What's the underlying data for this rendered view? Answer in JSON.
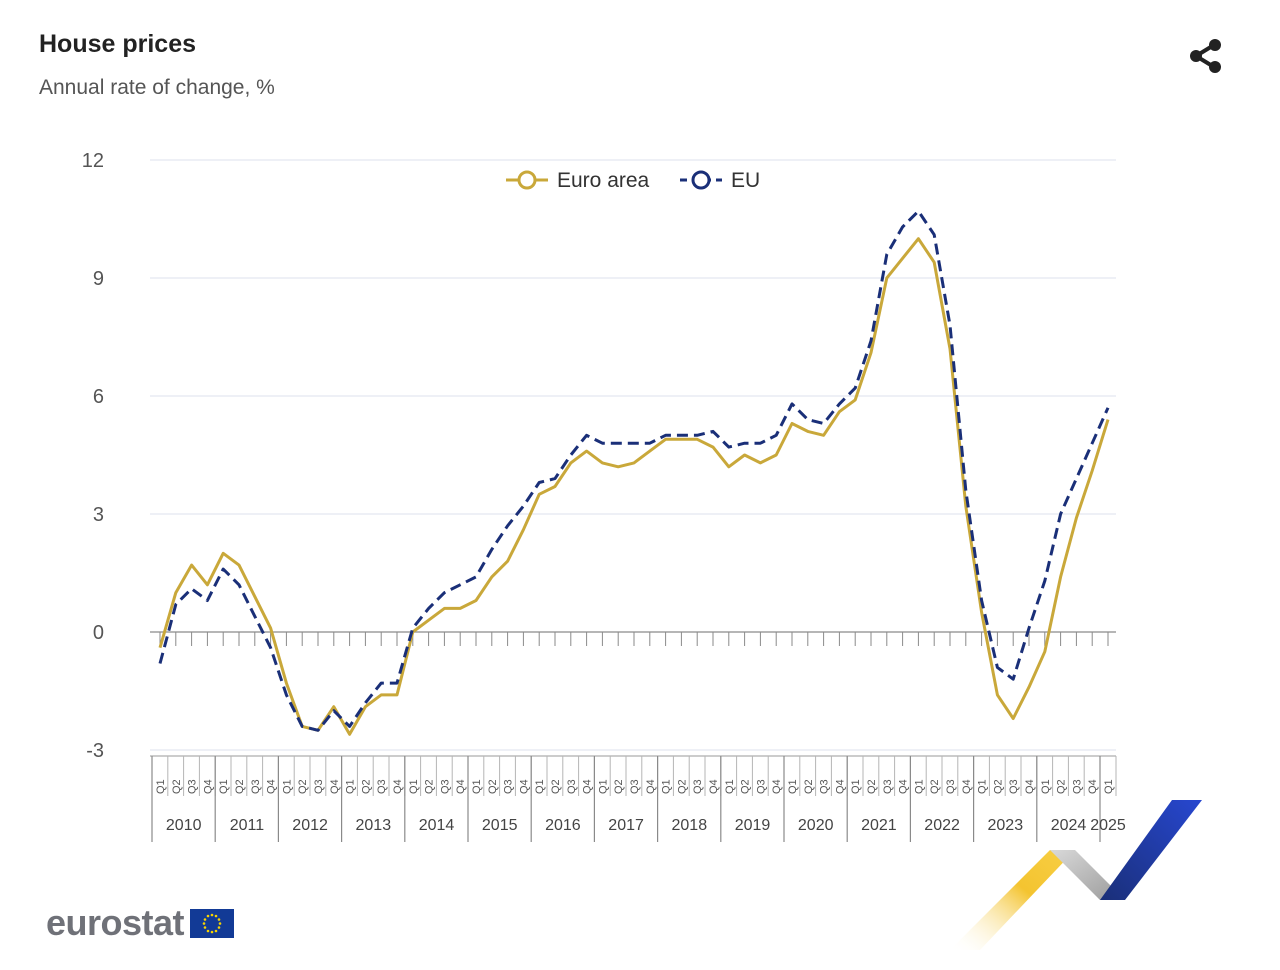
{
  "header": {
    "title": "House prices",
    "subtitle": "Annual rate of change, %"
  },
  "share": {
    "icon": "share-icon"
  },
  "brand": {
    "name": "eurostat",
    "flag_icon": "eu-flag-icon"
  },
  "colors": {
    "euro_area": "#c9a83a",
    "eu": "#1a2f78",
    "grid": "#dde0ee",
    "axis": "#9a9a9a"
  },
  "chart_data": {
    "type": "line",
    "yticks": [
      12,
      9,
      6,
      3,
      0,
      -3
    ],
    "ylim": [
      -3,
      12
    ],
    "grid": true,
    "legend_position": "top-center",
    "quarter_labels": [
      "Q1",
      "Q2",
      "Q3",
      "Q4"
    ],
    "years": [
      "2010",
      "2011",
      "2012",
      "2013",
      "2014",
      "2015",
      "2016",
      "2017",
      "2018",
      "2019",
      "2020",
      "2021",
      "2022",
      "2023",
      "2024",
      "2025"
    ],
    "series": [
      {
        "name": "Euro area",
        "style": "solid",
        "color": "#c9a83a",
        "values": [
          -0.4,
          1.0,
          1.7,
          1.2,
          2.0,
          1.7,
          0.9,
          0.1,
          -1.3,
          -2.4,
          -2.5,
          -1.9,
          -2.6,
          -1.9,
          -1.6,
          -1.6,
          0.0,
          0.3,
          0.6,
          0.6,
          0.8,
          1.4,
          1.8,
          2.6,
          3.5,
          3.7,
          4.3,
          4.6,
          4.3,
          4.2,
          4.3,
          4.6,
          4.9,
          4.9,
          4.9,
          4.7,
          4.2,
          4.5,
          4.3,
          4.5,
          5.3,
          5.1,
          5.0,
          5.6,
          5.9,
          7.1,
          9.0,
          9.5,
          10.0,
          9.4,
          7.2,
          3.2,
          0.5,
          -1.6,
          -2.2,
          -1.4,
          -0.5,
          1.4,
          2.9,
          4.1,
          5.4
        ]
      },
      {
        "name": "EU",
        "style": "dashed",
        "color": "#1a2f78",
        "values": [
          -0.8,
          0.7,
          1.1,
          0.8,
          1.6,
          1.2,
          0.4,
          -0.4,
          -1.6,
          -2.4,
          -2.5,
          -2.0,
          -2.4,
          -1.8,
          -1.3,
          -1.3,
          0.1,
          0.6,
          1.0,
          1.2,
          1.4,
          2.1,
          2.7,
          3.2,
          3.8,
          3.9,
          4.5,
          5.0,
          4.8,
          4.8,
          4.8,
          4.8,
          5.0,
          5.0,
          5.0,
          5.1,
          4.7,
          4.8,
          4.8,
          5.0,
          5.8,
          5.4,
          5.3,
          5.8,
          6.2,
          7.4,
          9.6,
          10.3,
          10.7,
          10.1,
          7.8,
          3.6,
          0.8,
          -0.9,
          -1.2,
          0.1,
          1.3,
          3.0,
          3.9,
          4.8,
          5.7
        ]
      }
    ]
  }
}
